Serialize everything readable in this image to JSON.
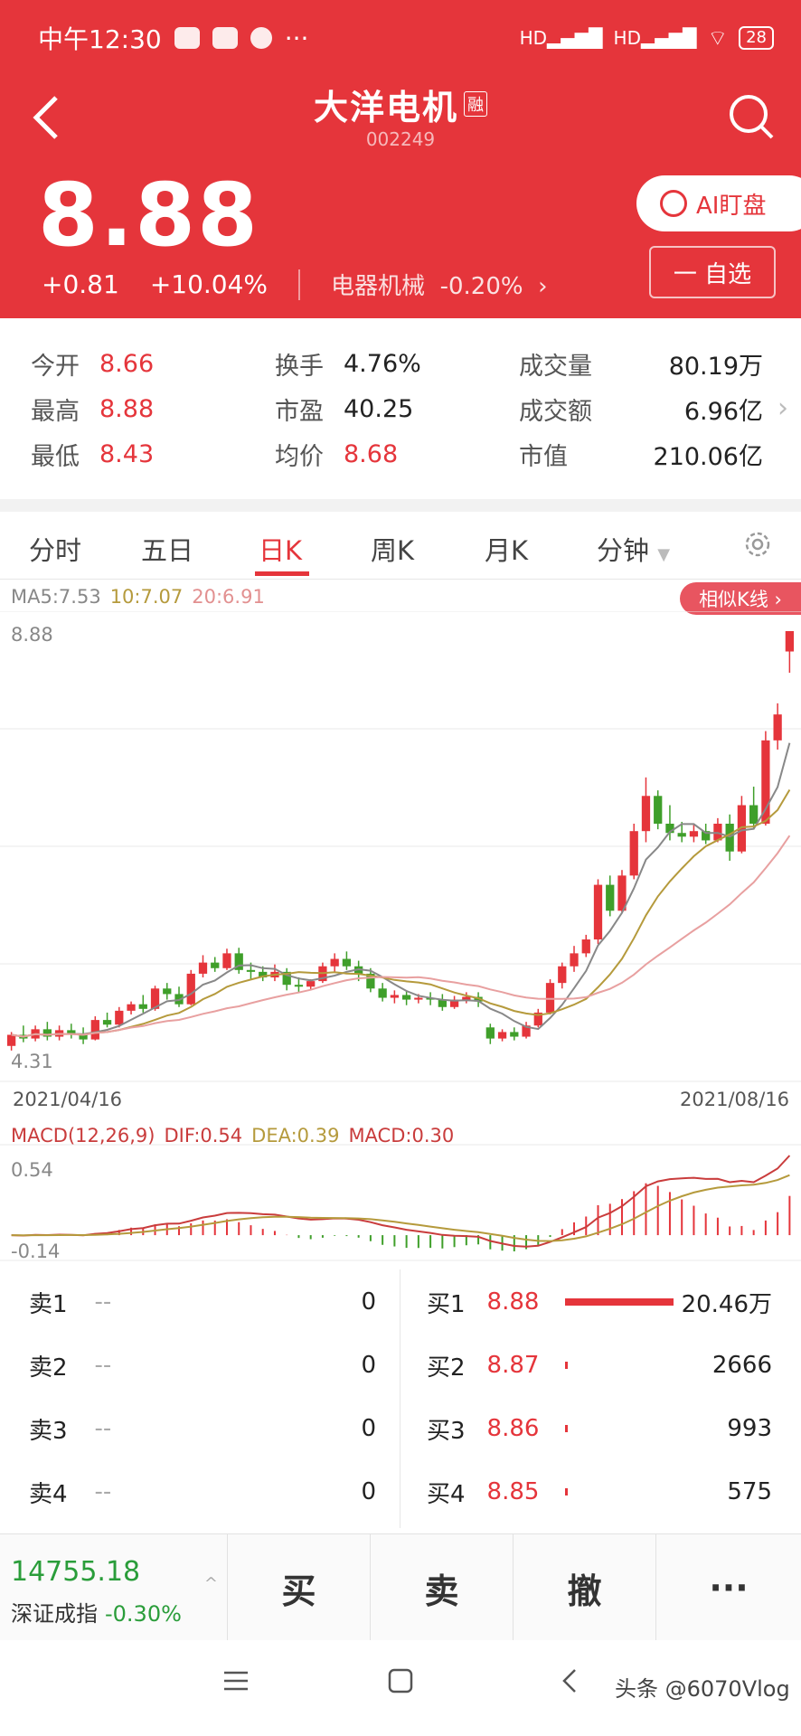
{
  "status": {
    "time": "中午12:30",
    "dots": "···",
    "battery": "28",
    "hd1": "HD",
    "hd2": "HD"
  },
  "stock": {
    "name": "大洋电机",
    "badge": "融",
    "code": "002249",
    "price": "8.88",
    "change": "+0.81",
    "change_pct": "+10.04%",
    "sector": "电器机械",
    "sector_pct": "-0.20%",
    "sector_arrow": "›"
  },
  "buttons": {
    "ai": "AI盯盘",
    "fav": "一 自选"
  },
  "quote": {
    "open_label": "今开",
    "open": "8.66",
    "high_label": "最高",
    "high": "8.88",
    "low_label": "最低",
    "low": "8.43",
    "turnover_label": "换手",
    "turnover": "4.76%",
    "pe_label": "市盈",
    "pe": "40.25",
    "avg_label": "均价",
    "avg": "8.68",
    "volume_label": "成交量",
    "volume": "80.19万",
    "amount_label": "成交额",
    "amount": "6.96亿",
    "mktcap_label": "市值",
    "mktcap": "210.06亿",
    "more_arrow": "›"
  },
  "tabs": [
    "分时",
    "五日",
    "日K",
    "周K",
    "月K",
    "分钟"
  ],
  "active_tab": 2,
  "chart": {
    "ma5": "MA5:7.53",
    "ma10": "10:7.07",
    "ma20": "20:6.91",
    "similar": "相似K线 ›",
    "max_label": "8.88",
    "min_label": "4.31",
    "date_start": "2021/04/16",
    "date_end": "2021/08/16",
    "macd_name": "MACD(12,26,9)",
    "dif": "DIF:0.54",
    "dea": "DEA:0.39",
    "macd": "MACD:0.30",
    "macd_max": "0.54",
    "macd_min": "-0.14",
    "colors": {
      "up": "#e5353b",
      "down": "#3f9f2a",
      "ma5": "#888888",
      "ma10": "#b59a3c",
      "ma20": "#e8a0a0"
    }
  },
  "chart_data": {
    "type": "candlestick",
    "x_range": [
      "2021/04/16",
      "2021/08/16"
    ],
    "y_range": [
      4.31,
      8.88
    ],
    "candles": [
      [
        4.4,
        4.55,
        4.52,
        4.35
      ],
      [
        4.52,
        4.62,
        4.48,
        4.44
      ],
      [
        4.48,
        4.62,
        4.58,
        4.45
      ],
      [
        4.58,
        4.66,
        4.5,
        4.46
      ],
      [
        4.5,
        4.62,
        4.57,
        4.46
      ],
      [
        4.57,
        4.64,
        4.52,
        4.48
      ],
      [
        4.52,
        4.6,
        4.47,
        4.42
      ],
      [
        4.47,
        4.72,
        4.68,
        4.46
      ],
      [
        4.68,
        4.76,
        4.63,
        4.6
      ],
      [
        4.63,
        4.82,
        4.78,
        4.6
      ],
      [
        4.78,
        4.88,
        4.85,
        4.74
      ],
      [
        4.85,
        4.95,
        4.8,
        4.76
      ],
      [
        4.8,
        5.05,
        5.02,
        4.78
      ],
      [
        5.02,
        5.08,
        4.96,
        4.9
      ],
      [
        4.96,
        5.04,
        4.85,
        4.82
      ],
      [
        4.85,
        5.22,
        5.18,
        4.84
      ],
      [
        5.18,
        5.38,
        5.3,
        5.14
      ],
      [
        5.3,
        5.36,
        5.24,
        5.2
      ],
      [
        5.24,
        5.45,
        5.4,
        5.22
      ],
      [
        5.4,
        5.46,
        5.22,
        5.18
      ],
      [
        5.22,
        5.3,
        5.2,
        5.12
      ],
      [
        5.2,
        5.26,
        5.14,
        5.1
      ],
      [
        5.14,
        5.28,
        5.2,
        5.1
      ],
      [
        5.2,
        5.24,
        5.06,
        5.0
      ],
      [
        5.06,
        5.14,
        5.04,
        4.98
      ],
      [
        5.04,
        5.12,
        5.1,
        5.0
      ],
      [
        5.1,
        5.3,
        5.26,
        5.08
      ],
      [
        5.26,
        5.4,
        5.34,
        5.2
      ],
      [
        5.34,
        5.42,
        5.26,
        5.22
      ],
      [
        5.26,
        5.32,
        5.18,
        5.1
      ],
      [
        5.18,
        5.24,
        5.02,
        4.98
      ],
      [
        5.02,
        5.08,
        4.92,
        4.88
      ],
      [
        4.92,
        5.0,
        4.95,
        4.86
      ],
      [
        4.95,
        5.0,
        4.9,
        4.84
      ],
      [
        4.9,
        4.96,
        4.92,
        4.86
      ],
      [
        4.92,
        4.98,
        4.9,
        4.84
      ],
      [
        4.9,
        4.96,
        4.82,
        4.78
      ],
      [
        4.82,
        4.94,
        4.9,
        4.8
      ],
      [
        4.9,
        4.98,
        4.93,
        4.86
      ],
      [
        4.93,
        4.98,
        4.88,
        4.82
      ],
      [
        4.6,
        4.64,
        4.48,
        4.42
      ],
      [
        4.48,
        4.58,
        4.55,
        4.45
      ],
      [
        4.55,
        4.6,
        4.5,
        4.46
      ],
      [
        4.5,
        4.66,
        4.62,
        4.48
      ],
      [
        4.62,
        4.8,
        4.76,
        4.6
      ],
      [
        4.76,
        5.12,
        5.08,
        4.74
      ],
      [
        5.08,
        5.3,
        5.26,
        5.02
      ],
      [
        5.26,
        5.48,
        5.4,
        5.2
      ],
      [
        5.4,
        5.6,
        5.55,
        5.36
      ],
      [
        5.55,
        6.2,
        6.14,
        5.5
      ],
      [
        6.14,
        6.24,
        5.86,
        5.8
      ],
      [
        5.86,
        6.3,
        6.24,
        5.84
      ],
      [
        6.24,
        6.8,
        6.72,
        6.2
      ],
      [
        6.72,
        7.3,
        7.1,
        6.6
      ],
      [
        7.1,
        7.16,
        6.8,
        6.74
      ],
      [
        6.8,
        7.0,
        6.7,
        6.62
      ],
      [
        6.7,
        6.82,
        6.66,
        6.6
      ],
      [
        6.66,
        6.8,
        6.72,
        6.6
      ],
      [
        6.72,
        6.8,
        6.62,
        6.58
      ],
      [
        6.62,
        6.86,
        6.8,
        6.6
      ],
      [
        6.8,
        6.9,
        6.5,
        6.4
      ],
      [
        6.5,
        7.1,
        7.0,
        6.48
      ],
      [
        7.0,
        7.2,
        6.8,
        6.74
      ],
      [
        6.8,
        7.8,
        7.7,
        6.78
      ],
      [
        7.7,
        8.1,
        7.98,
        7.6
      ],
      [
        8.66,
        8.88,
        8.88,
        8.43
      ]
    ],
    "ma5": "MA5:7.53",
    "ma10": "10:7.07",
    "ma20": "20:6.91",
    "macd": {
      "dif": 0.54,
      "dea": 0.39,
      "macd": 0.3,
      "range": [
        -0.14,
        0.54
      ]
    }
  },
  "orderbook": {
    "sell": [
      {
        "label": "卖1",
        "price": "--",
        "vol": "0"
      },
      {
        "label": "卖2",
        "price": "--",
        "vol": "0"
      },
      {
        "label": "卖3",
        "price": "--",
        "vol": "0"
      },
      {
        "label": "卖4",
        "price": "--",
        "vol": "0"
      }
    ],
    "buy": [
      {
        "label": "买1",
        "price": "8.88",
        "vol": "20.46万",
        "bar": 1.0
      },
      {
        "label": "买2",
        "price": "8.87",
        "vol": "2666",
        "bar": 0.013
      },
      {
        "label": "买3",
        "price": "8.86",
        "vol": "993",
        "bar": 0.005
      },
      {
        "label": "买4",
        "price": "8.85",
        "vol": "575",
        "bar": 0.003
      }
    ]
  },
  "index": {
    "value": "14755.18",
    "name": "深证成指",
    "pct": "-0.30%",
    "arrow": "^"
  },
  "actions": [
    "买",
    "卖",
    "撤",
    "···"
  ],
  "watermark": "头条 @6070Vlog"
}
